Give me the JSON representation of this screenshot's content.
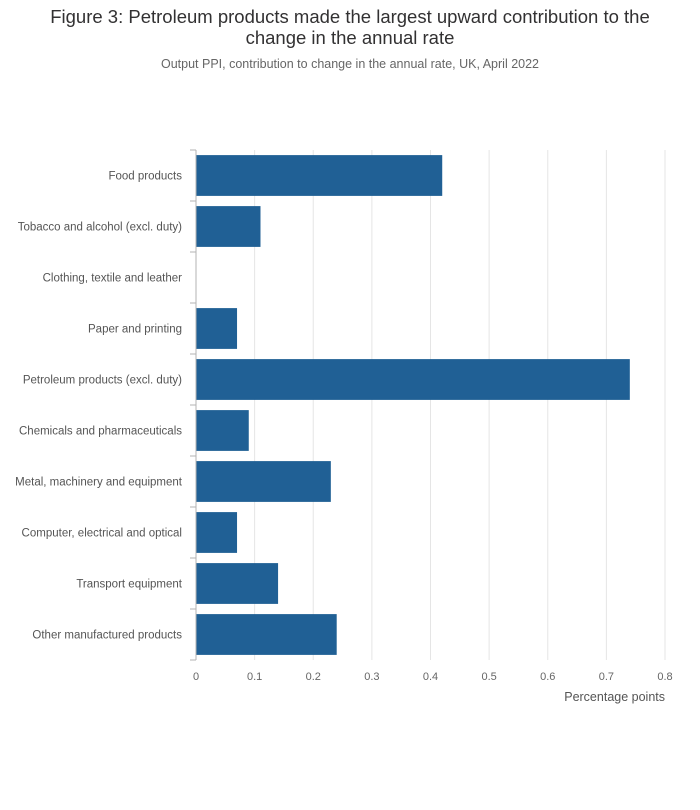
{
  "chart_data": {
    "type": "bar",
    "orientation": "horizontal",
    "title": "Figure 3: Petroleum products made the largest upward contribution to the change in the annual rate",
    "subtitle": "Output PPI, contribution to change in the annual rate, UK, April 2022",
    "xlabel": "Percentage points",
    "ylabel": "",
    "xlim": [
      0,
      0.8
    ],
    "xticks": [
      "0",
      "0.1",
      "0.2",
      "0.3",
      "0.4",
      "0.5",
      "0.6",
      "0.7",
      "0.8"
    ],
    "grid": true,
    "categories": [
      "Food products",
      "Tobacco and alcohol (excl. duty)",
      "Clothing, textile and leather",
      "Paper and printing",
      "Petroleum products (excl. duty)",
      "Chemicals and pharmaceuticals",
      "Metal, machinery and equipment",
      "Computer, electrical and optical",
      "Transport equipment",
      "Other manufactured products"
    ],
    "values": [
      0.42,
      0.11,
      0.0,
      0.07,
      0.74,
      0.09,
      0.23,
      0.07,
      0.14,
      0.24
    ],
    "bar_color": "#206095",
    "grid_color": "#e5e5e5",
    "axis_color": "#b3b3b3"
  }
}
